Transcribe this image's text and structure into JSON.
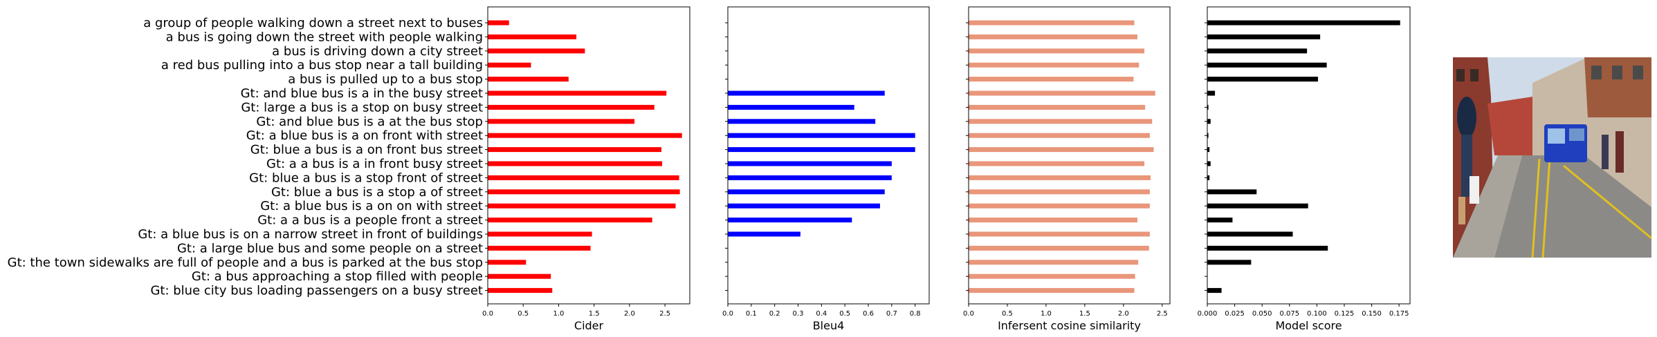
{
  "chart_data": {
    "type": "bar",
    "orientation": "horizontal",
    "categories": [
      "a group of people walking down a street next to buses",
      "a bus is going down the street with people walking",
      "a bus is driving down a city street",
      "a red bus pulling into a bus stop near a tall building",
      "a bus is pulled up to a bus stop",
      "Gt: and blue bus is a in the busy street",
      "Gt: large a bus is a stop on busy street",
      "Gt: and blue bus is a at the bus stop",
      "Gt: a blue bus is a on front with street",
      "Gt: blue a bus is a on front bus street",
      "Gt: a a bus is a in front busy street",
      "Gt: blue a bus is a stop front of street",
      "Gt: blue a bus is a stop a of street",
      "Gt: a blue bus is a on on with street",
      "Gt: a a bus is a people front a street",
      "Gt: a blue bus is on a narrow street in front of buildings",
      "Gt: a large blue bus and some people on a street",
      "Gt: the town sidewalks are full of people and a bus is parked at the bus stop",
      "Gt: a bus approaching a stop filled with people",
      "Gt: blue city bus loading passengers on a busy street"
    ],
    "panels": [
      {
        "xlabel": "Cider",
        "color": "#ff0000",
        "xlim": [
          0,
          2.85
        ],
        "ticks": [
          0.0,
          0.5,
          1.0,
          1.5,
          2.0,
          2.5
        ],
        "tick_labels": [
          "0.0",
          "0.5",
          "1.0",
          "1.5",
          "2.0",
          "2.5"
        ],
        "values": [
          0.3,
          1.25,
          1.37,
          0.61,
          1.14,
          2.52,
          2.35,
          2.07,
          2.74,
          2.45,
          2.46,
          2.7,
          2.71,
          2.65,
          2.32,
          1.47,
          1.45,
          0.54,
          0.89,
          0.91
        ]
      },
      {
        "xlabel": "Bleu4",
        "color": "#0000ff",
        "xlim": [
          0,
          0.86
        ],
        "ticks": [
          0.0,
          0.1,
          0.2,
          0.3,
          0.4,
          0.5,
          0.6,
          0.7,
          0.8
        ],
        "tick_labels": [
          "0.0",
          "0.1",
          "0.2",
          "0.3",
          "0.4",
          "0.5",
          "0.6",
          "0.7",
          "0.8"
        ],
        "values": [
          0,
          0,
          0,
          0,
          0,
          0.67,
          0.54,
          0.63,
          0.8,
          0.8,
          0.7,
          0.7,
          0.67,
          0.65,
          0.53,
          0.31,
          0,
          0,
          0,
          0
        ]
      },
      {
        "xlabel": "Infersent cosine similarity",
        "color": "#e9967a",
        "xlim": [
          0,
          2.6
        ],
        "ticks": [
          0.0,
          0.5,
          1.0,
          1.5,
          2.0,
          2.5
        ],
        "tick_labels": [
          "0.0",
          "0.5",
          "1.0",
          "1.5",
          "2.0",
          "2.5"
        ],
        "values": [
          2.14,
          2.18,
          2.27,
          2.2,
          2.13,
          2.41,
          2.28,
          2.37,
          2.34,
          2.39,
          2.27,
          2.35,
          2.34,
          2.34,
          2.18,
          2.34,
          2.33,
          2.19,
          2.15,
          2.14
        ]
      },
      {
        "xlabel": "Model score",
        "color": "#000000",
        "xlim": [
          0,
          0.185
        ],
        "ticks": [
          0.0,
          0.025,
          0.05,
          0.075,
          0.1,
          0.125,
          0.15,
          0.175
        ],
        "tick_labels": [
          "0.000",
          "0.025",
          "0.050",
          "0.075",
          "0.100",
          "0.125",
          "0.150",
          "0.175"
        ],
        "values": [
          0.176,
          0.103,
          0.091,
          0.109,
          0.101,
          0.007,
          0.001,
          0.003,
          0.001,
          0.002,
          0.003,
          0.002,
          0.045,
          0.092,
          0.023,
          0.078,
          0.11,
          0.04,
          0.0,
          0.013
        ]
      }
    ]
  },
  "photo": {
    "description_icon": "photo-bus-street-icon",
    "sky": "#d9e6f2",
    "bus": "#1f3fbf"
  }
}
